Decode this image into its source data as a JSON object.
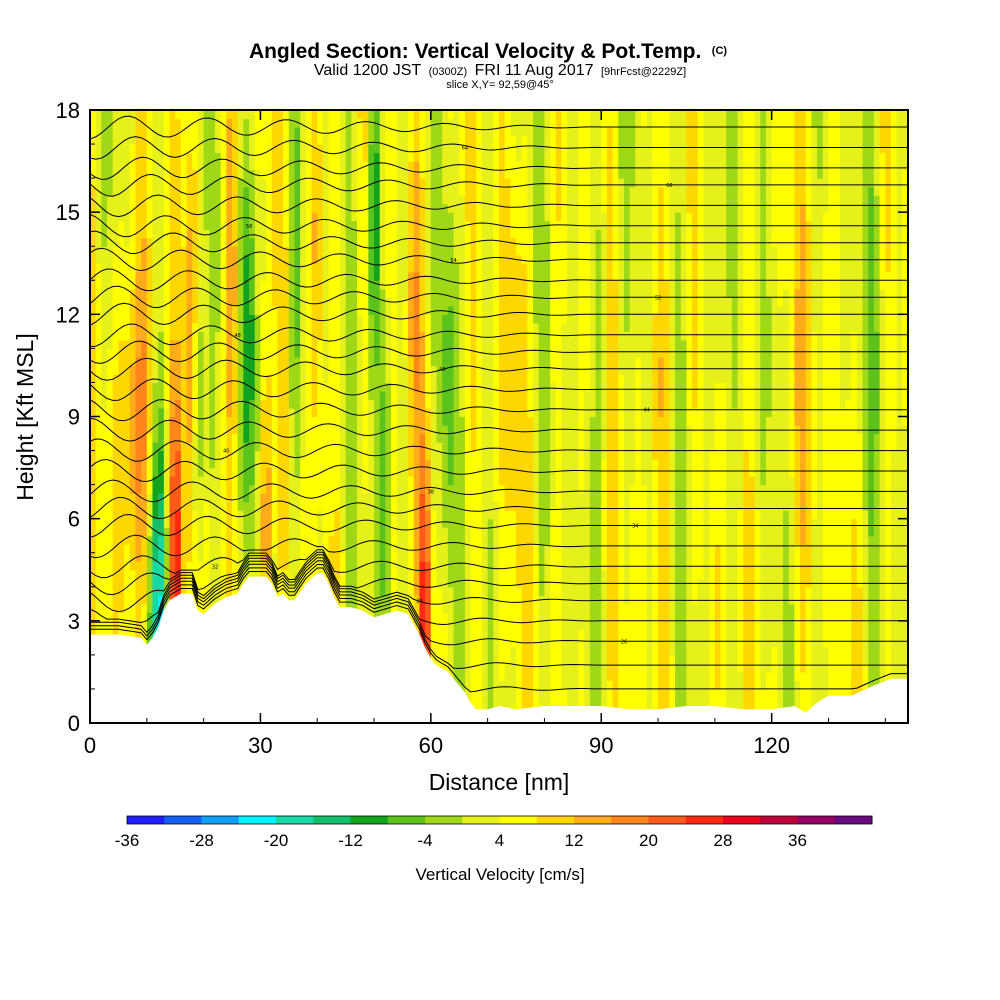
{
  "chart_data": {
    "type": "heatmap",
    "title": {
      "main": "Angled Section: Vertical Velocity & Pot.Temp.",
      "unit_tag": "(C)"
    },
    "subtitle": {
      "valid_a": "Valid 1200 JST",
      "valid_utc": "(0300Z)",
      "valid_b": "FRI 11 Aug 2017",
      "forecast": "[9hrFcst@2229Z]",
      "slice": "slice X,Y= 92,59@45°"
    },
    "xlabel": "Distance [nm]",
    "ylabel": "Height [Kft MSL]",
    "xlim": [
      0,
      144
    ],
    "ylim": [
      0,
      18
    ],
    "x_ticks": [
      "0",
      "30",
      "60",
      "90",
      "120"
    ],
    "y_ticks": [
      "0",
      "3",
      "6",
      "9",
      "12",
      "15",
      "18"
    ],
    "colorbar": {
      "label": "Vertical Velocity [cm/s]",
      "tick_labels": [
        "-36",
        "-28",
        "-20",
        "-12",
        "-4",
        "4",
        "12",
        "20",
        "28",
        "36"
      ],
      "colors": [
        "#1f1fff",
        "#1560f5",
        "#109ff7",
        "#00f5ff",
        "#16d9a6",
        "#12c06a",
        "#12a321",
        "#5cc21c",
        "#9ed816",
        "#e6f01a",
        "#ffff00",
        "#ffd700",
        "#ffac1a",
        "#ff861a",
        "#ff5a1a",
        "#ff2a10",
        "#e8001c",
        "#c00038",
        "#940064",
        "#6a0a80"
      ]
    },
    "terrain_kft": [
      [
        0,
        2.6
      ],
      [
        5,
        2.6
      ],
      [
        9,
        2.5
      ],
      [
        10,
        2.3
      ],
      [
        11,
        2.5
      ],
      [
        12,
        2.8
      ],
      [
        13,
        3.3
      ],
      [
        14,
        3.6
      ],
      [
        16,
        3.8
      ],
      [
        18,
        3.8
      ],
      [
        19,
        3.3
      ],
      [
        20,
        3.2
      ],
      [
        22,
        3.5
      ],
      [
        24,
        3.7
      ],
      [
        26,
        3.8
      ],
      [
        27,
        4.1
      ],
      [
        28,
        4.3
      ],
      [
        31,
        4.3
      ],
      [
        32,
        4.1
      ],
      [
        33,
        3.7
      ],
      [
        34,
        3.8
      ],
      [
        35,
        3.6
      ],
      [
        36,
        3.6
      ],
      [
        38,
        4.1
      ],
      [
        40,
        4.4
      ],
      [
        41,
        4.4
      ],
      [
        42,
        4.1
      ],
      [
        43,
        3.7
      ],
      [
        44,
        3.4
      ],
      [
        46,
        3.4
      ],
      [
        48,
        3.3
      ],
      [
        50,
        3.1
      ],
      [
        52,
        3.2
      ],
      [
        54,
        3.3
      ],
      [
        56,
        3.2
      ],
      [
        57,
        2.9
      ],
      [
        58,
        2.6
      ],
      [
        59,
        2.2
      ],
      [
        60,
        1.9
      ],
      [
        61,
        1.7
      ],
      [
        63,
        1.5
      ],
      [
        64,
        1.3
      ],
      [
        65,
        1.1
      ],
      [
        66,
        0.9
      ],
      [
        67,
        0.6
      ],
      [
        68,
        0.4
      ],
      [
        70,
        0.4
      ],
      [
        72,
        0.5
      ],
      [
        75,
        0.4
      ],
      [
        80,
        0.5
      ],
      [
        85,
        0.5
      ],
      [
        90,
        0.5
      ],
      [
        95,
        0.4
      ],
      [
        100,
        0.4
      ],
      [
        105,
        0.5
      ],
      [
        110,
        0.5
      ],
      [
        115,
        0.4
      ],
      [
        120,
        0.4
      ],
      [
        124,
        0.5
      ],
      [
        126,
        0.3
      ],
      [
        128,
        0.6
      ],
      [
        130,
        0.8
      ],
      [
        134,
        0.8
      ],
      [
        138,
        1.1
      ],
      [
        141,
        1.3
      ],
      [
        144,
        1.3
      ]
    ],
    "theta_contour_labels": [
      "24",
      "26",
      "28",
      "30",
      "32",
      "34",
      "36",
      "38",
      "40",
      "42",
      "44",
      "46",
      "48",
      "50",
      "52",
      "54",
      "56",
      "58",
      "60",
      "62",
      "64"
    ],
    "theta_levels_kft": [
      1.0,
      1.7,
      2.4,
      3.0,
      3.6,
      4.1,
      4.6,
      5.2,
      5.8,
      6.3,
      6.8,
      7.4,
      8.0,
      8.6,
      9.2,
      9.8,
      10.4,
      10.9,
      11.4,
      12.0,
      12.5,
      13.0,
      13.6,
      14.1,
      14.6,
      15.2,
      15.8,
      16.3,
      16.9,
      17.5
    ],
    "velocity_features": [
      {
        "x": 8,
        "z": 8.5,
        "w": 14,
        "halfwidth": 3.5
      },
      {
        "x": 15,
        "z": 4.2,
        "w": 26,
        "halfwidth": 1.4
      },
      {
        "x": 12,
        "z": 3.2,
        "w": -22,
        "halfwidth": 2.0
      },
      {
        "x": 18,
        "z": 12.0,
        "w": 10,
        "halfwidth": 1.2
      },
      {
        "x": 19,
        "z": 9.0,
        "w": -16,
        "halfwidth": 0.9
      },
      {
        "x": 25,
        "z": 13.0,
        "w": 12,
        "halfwidth": 1.0
      },
      {
        "x": 28,
        "z": 11.0,
        "w": -14,
        "halfwidth": 1.3
      },
      {
        "x": 31,
        "z": 5.5,
        "w": 20,
        "halfwidth": 0.9
      },
      {
        "x": 36,
        "z": 12.0,
        "w": -8,
        "halfwidth": 1.2
      },
      {
        "x": 40,
        "z": 14.5,
        "w": 10,
        "halfwidth": 1.2
      },
      {
        "x": 50,
        "z": 15.0,
        "w": -18,
        "halfwidth": 1.1
      },
      {
        "x": 52,
        "z": 7.0,
        "w": -14,
        "halfwidth": 1.0
      },
      {
        "x": 57,
        "z": 12.5,
        "w": 9,
        "halfwidth": 1.4
      },
      {
        "x": 59,
        "z": 2.6,
        "w": 20,
        "halfwidth": 1.0
      },
      {
        "x": 63,
        "z": 10.0,
        "w": -8,
        "halfwidth": 1.2
      },
      {
        "x": 75,
        "z": 11.0,
        "w": 6,
        "halfwidth": 2.0
      },
      {
        "x": 90,
        "z": 12.0,
        "w": -6,
        "halfwidth": 1.5
      },
      {
        "x": 100,
        "z": 10.0,
        "w": 8,
        "halfwidth": 1.5
      },
      {
        "x": 110,
        "z": 12.0,
        "w": -5,
        "halfwidth": 2.0
      },
      {
        "x": 125,
        "z": 9.0,
        "w": 5,
        "halfwidth": 2.5
      },
      {
        "x": 138,
        "z": 12.0,
        "w": -4,
        "halfwidth": 2.5
      }
    ]
  }
}
